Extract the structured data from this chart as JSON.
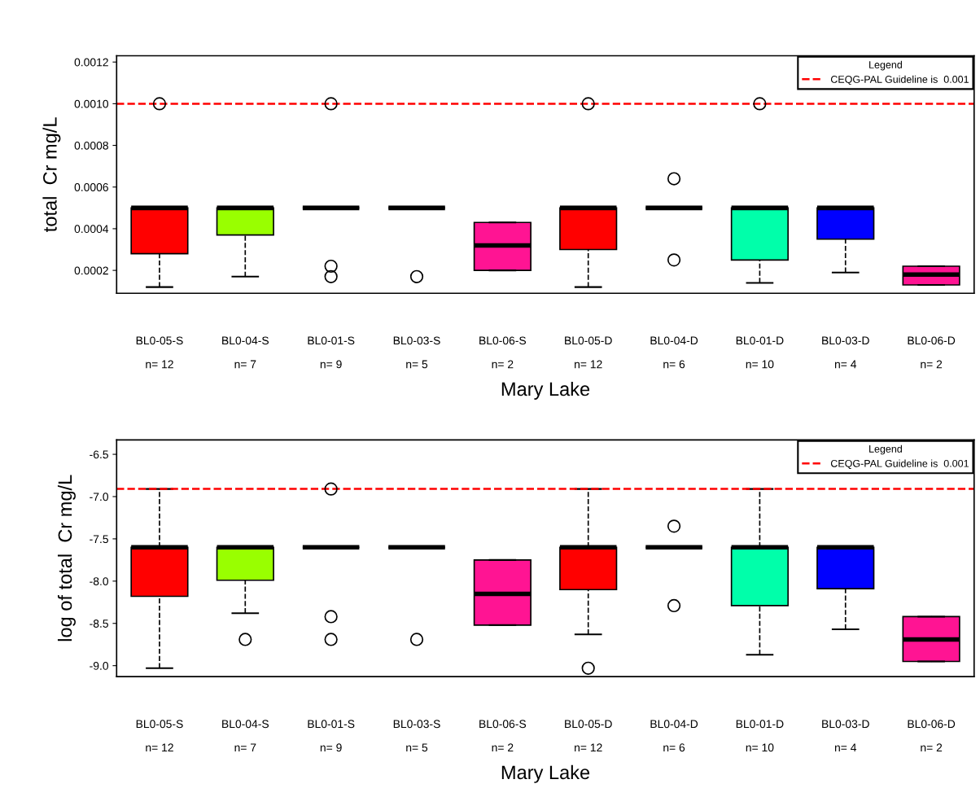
{
  "chart_data": [
    {
      "type": "box",
      "categories": [
        "BL0-05-S\nn= 12",
        "BL0-04-S\nn= 7",
        "BL0-01-S\nn= 9",
        "BL0-03-S\nn= 5",
        "BL0-06-S\nn= 2",
        "BL0-05-D\nn= 12",
        "BL0-04-D\nn= 6",
        "BL0-01-D\nn= 10",
        "BL0-03-D\nn= 4",
        "BL0-06-D\nn= 2"
      ],
      "colors": [
        "#ff0000",
        "#99ff00",
        null,
        null,
        "#ff1493",
        "#ff0000",
        null,
        "#00ffaa",
        "#0000ff",
        "#ff1493"
      ],
      "boxes": [
        {
          "low": 0.00012,
          "q1": 0.00028,
          "median": 0.0005,
          "q3": 0.0005,
          "high": 0.0005,
          "outliers": [
            0.001
          ]
        },
        {
          "low": 0.00017,
          "q1": 0.00037,
          "median": 0.0005,
          "q3": 0.0005,
          "high": 0.0005
        },
        {
          "low": 0.0005,
          "q1": 0.0005,
          "median": 0.0005,
          "q3": 0.0005,
          "high": 0.0005,
          "outliers": [
            0.00022,
            0.00017,
            0.001
          ]
        },
        {
          "low": 0.0005,
          "q1": 0.0005,
          "median": 0.0005,
          "q3": 0.0005,
          "high": 0.0005,
          "outliers": [
            0.00017
          ]
        },
        {
          "low": 0.0002,
          "q1": 0.0002,
          "median": 0.00032,
          "q3": 0.00043,
          "high": 0.00043
        },
        {
          "low": 0.00012,
          "q1": 0.0003,
          "median": 0.0005,
          "q3": 0.0005,
          "high": 0.0005,
          "outliers": [
            0.001
          ]
        },
        {
          "low": 0.0005,
          "q1": 0.0005,
          "median": 0.0005,
          "q3": 0.0005,
          "high": 0.0005,
          "outliers": [
            0.00064,
            0.00025
          ]
        },
        {
          "low": 0.00014,
          "q1": 0.00025,
          "median": 0.0005,
          "q3": 0.0005,
          "high": 0.0005,
          "outliers": [
            0.001
          ]
        },
        {
          "low": 0.00019,
          "q1": 0.00035,
          "median": 0.0005,
          "q3": 0.0005,
          "high": 0.0005
        },
        {
          "low": 0.00013,
          "q1": 0.00013,
          "median": 0.00018,
          "q3": 0.00022,
          "high": 0.00022
        }
      ],
      "xlabel": "Mary Lake",
      "ylabel": "total  Cr mg/L",
      "ylim": [
        9e-05,
        0.00123
      ],
      "yticks": [
        0.0002,
        0.0004,
        0.0006,
        0.0008,
        {
          "value": 0.001,
          "label": "0.0010"
        },
        0.0012
      ],
      "ref_lines": [
        {
          "axis": "y",
          "value": 0.001,
          "label": "CEQG-PAL Guideline is  0.001",
          "color": "#ff0000",
          "line_style": "dashed"
        }
      ],
      "legend": "top right",
      "legend_title": "Legend"
    },
    {
      "type": "box",
      "categories": [
        "BL0-05-S\nn= 12",
        "BL0-04-S\nn= 7",
        "BL0-01-S\nn= 9",
        "BL0-03-S\nn= 5",
        "BL0-06-S\nn= 2",
        "BL0-05-D\nn= 12",
        "BL0-04-D\nn= 6",
        "BL0-01-D\nn= 10",
        "BL0-03-D\nn= 4",
        "BL0-06-D\nn= 2"
      ],
      "colors": [
        "#ff0000",
        "#99ff00",
        null,
        null,
        "#ff1493",
        "#ff0000",
        null,
        "#00ffaa",
        "#0000ff",
        "#ff1493"
      ],
      "boxes": [
        {
          "low": -9.03,
          "q1": -8.18,
          "median": -7.6,
          "q3": -7.6,
          "high": -6.91
        },
        {
          "low": -8.38,
          "q1": -7.99,
          "median": -7.6,
          "q3": -7.6,
          "high": -7.6,
          "outliers": [
            -8.69
          ]
        },
        {
          "low": -7.6,
          "q1": -7.6,
          "median": -7.6,
          "q3": -7.6,
          "high": -7.6,
          "outliers": [
            -6.91,
            -8.42,
            -8.69
          ]
        },
        {
          "low": -7.6,
          "q1": -7.6,
          "median": -7.6,
          "q3": -7.6,
          "high": -7.6,
          "outliers": [
            -8.69
          ]
        },
        {
          "low": -8.52,
          "q1": -8.52,
          "median": -8.15,
          "q3": -7.75,
          "high": -7.75
        },
        {
          "low": -8.63,
          "q1": -8.1,
          "median": -7.6,
          "q3": -7.6,
          "high": -6.91,
          "outliers": [
            -9.03
          ]
        },
        {
          "low": -7.6,
          "q1": -7.6,
          "median": -7.6,
          "q3": -7.6,
          "high": -7.6,
          "outliers": [
            -7.35,
            -8.29
          ]
        },
        {
          "low": -8.87,
          "q1": -8.29,
          "median": -7.6,
          "q3": -7.6,
          "high": -6.91
        },
        {
          "low": -8.57,
          "q1": -8.09,
          "median": -7.6,
          "q3": -7.6,
          "high": -7.6
        },
        {
          "low": -8.95,
          "q1": -8.95,
          "median": -8.69,
          "q3": -8.42,
          "high": -8.42
        }
      ],
      "xlabel": "Mary Lake",
      "ylabel": "log of total  Cr mg/L",
      "ylim": [
        -9.13,
        -6.33
      ],
      "yticks": [
        {
          "value": -9,
          "label": "-9.0"
        },
        -8.5,
        {
          "value": -8,
          "label": "-8.0"
        },
        -7.5,
        {
          "value": -7,
          "label": "-7.0"
        },
        -6.5
      ],
      "ref_lines": [
        {
          "axis": "y",
          "value": -6.908,
          "label": "CEQG-PAL Guideline is  0.001",
          "color": "#ff0000",
          "line_style": "dashed"
        }
      ],
      "legend": "top right",
      "legend_title": "Legend"
    }
  ]
}
